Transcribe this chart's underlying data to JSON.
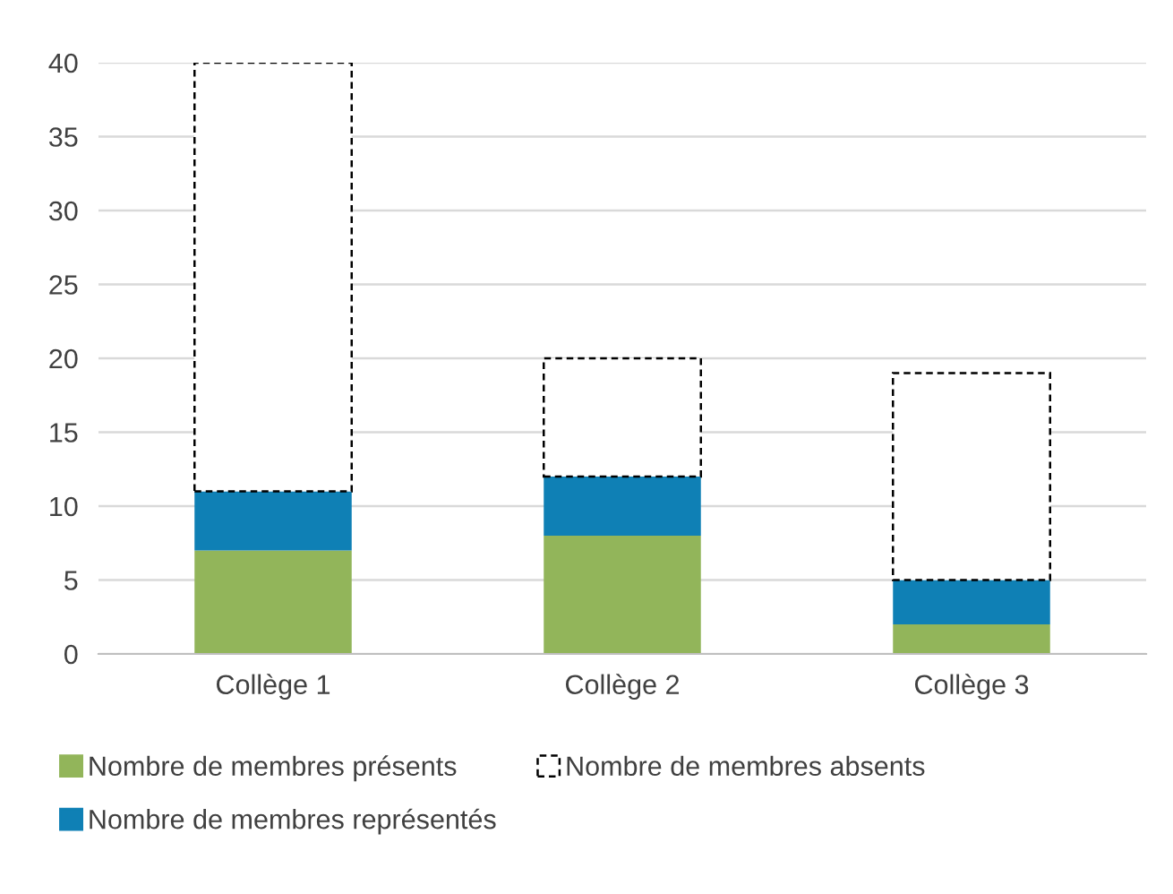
{
  "chart_data": {
    "type": "bar",
    "stacked": true,
    "categories": [
      "Collège 1",
      "Collège 2",
      "Collège 3"
    ],
    "series": [
      {
        "name": "Nombre de membres présents",
        "color": "#92b55a",
        "values": [
          7,
          8,
          2
        ]
      },
      {
        "name": "Nombre de membres représentés",
        "color": "#0f80b5",
        "values": [
          4,
          4,
          3
        ]
      },
      {
        "name": "Nombre de membres absents",
        "color": "#ffffff",
        "line_style": "dashed",
        "values": [
          29,
          8,
          14
        ]
      }
    ],
    "ylim": [
      0,
      40
    ],
    "yticks": [
      0,
      5,
      10,
      15,
      20,
      25,
      30,
      35,
      40
    ],
    "grid": "y",
    "legend": "bottom"
  }
}
